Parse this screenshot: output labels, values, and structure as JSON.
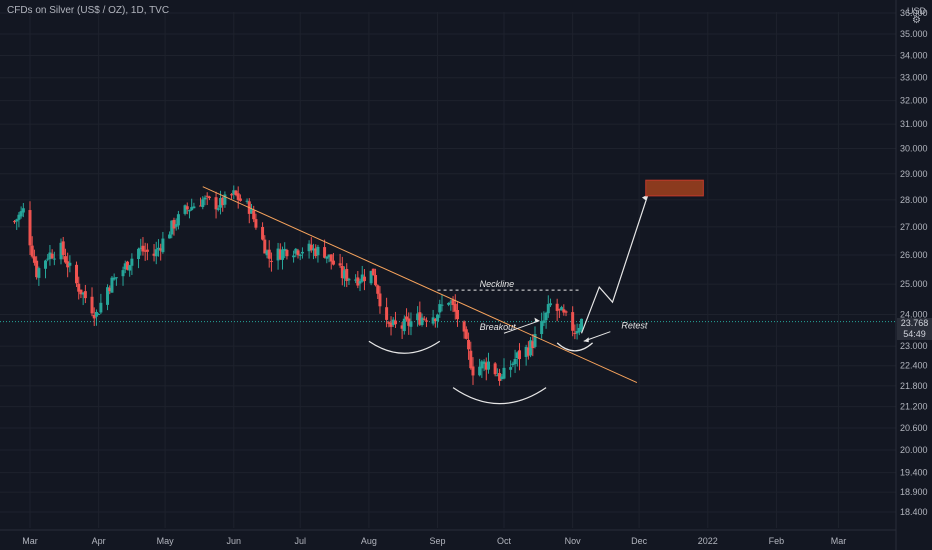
{
  "header": {
    "title": "CFDs on Silver (US$ / OZ), 1D, TVC",
    "currency": "USD",
    "settings_icon": "gear-icon"
  },
  "price_label": {
    "price": "23.768",
    "countdown": "54:49"
  },
  "colors": {
    "background": "#131722",
    "up": "#26a69a",
    "down": "#ef5350",
    "trendline": "#f7a35c",
    "annotation": "#e6e6e6",
    "target_box": "#8b3a1e",
    "target_border": "#c0392b",
    "current_price_line": "#26a69a"
  },
  "chart_data": {
    "type": "candlestick",
    "title": "CFDs on Silver (US$ / OZ), 1D, TVC",
    "y_axis_labels": [
      "36.000",
      "35.000",
      "34.000",
      "33.000",
      "32.000",
      "31.000",
      "30.000",
      "29.000",
      "28.000",
      "27.000",
      "26.000",
      "25.000",
      "24.000",
      "23.000",
      "22.400",
      "21.800",
      "21.200",
      "20.600",
      "20.000",
      "19.400",
      "18.900",
      "18.400"
    ],
    "x_axis_labels": [
      "Mar",
      "Apr",
      "May",
      "Jun",
      "Jul",
      "Aug",
      "Sep",
      "Oct",
      "Nov",
      "Dec",
      "2022",
      "Feb",
      "Mar"
    ],
    "y_scale": "log",
    "ylim": [
      18.2,
      36.2
    ],
    "current_price": 23.768,
    "annotations": [
      {
        "text": "Neckline",
        "type": "horizontal-dashed",
        "price": 24.8,
        "from": "Sep",
        "to": "Nov"
      },
      {
        "text": "Breakout",
        "type": "arrow-label"
      },
      {
        "text": "Retest",
        "type": "arrow-label"
      }
    ],
    "trendline": {
      "start": {
        "date": "2021-05-18",
        "price": 28.5
      },
      "end": {
        "date": "2021-11-30",
        "price": 21.9
      }
    },
    "projection": {
      "points": [
        {
          "date": "2021-11-05",
          "price": 23.4
        },
        {
          "date": "2021-11-13",
          "price": 24.9
        },
        {
          "date": "2021-11-19",
          "price": 24.4
        },
        {
          "date": "2021-12-05",
          "price": 28.2
        }
      ]
    },
    "target_zone": {
      "date_from": "2021-12-04",
      "date_to": "2021-12-30",
      "price_low": 28.15,
      "price_high": 28.75
    }
  }
}
